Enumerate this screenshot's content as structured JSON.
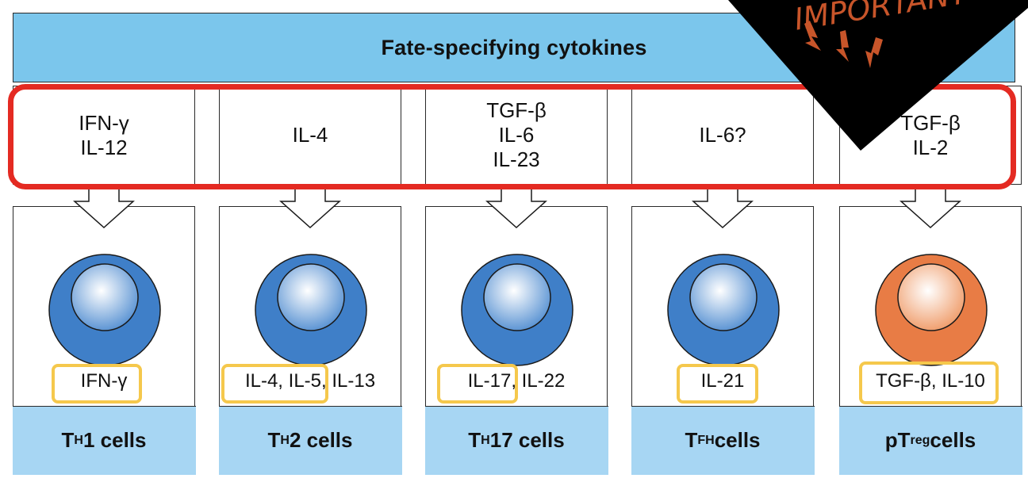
{
  "header": {
    "title": "Fate-specifying cytokines"
  },
  "columns": [
    {
      "inducers": [
        "IFN-γ",
        "IL-12"
      ],
      "secreted": "IFN-γ",
      "label": {
        "pre": "T",
        "sub": "H",
        "post": "1 cells"
      },
      "cell_color": "blue"
    },
    {
      "inducers": [
        "IL-4"
      ],
      "secreted": "IL-4, IL-5, IL-13",
      "label": {
        "pre": "T",
        "sub": "H",
        "post": "2 cells"
      },
      "cell_color": "blue"
    },
    {
      "inducers": [
        "TGF-β",
        "IL-6",
        "IL-23"
      ],
      "secreted": "IL-17, IL-22",
      "label": {
        "pre": "T",
        "sub": "H",
        "post": "17 cells"
      },
      "cell_color": "blue"
    },
    {
      "inducers": [
        "IL-6?"
      ],
      "secreted": "IL-21",
      "label": {
        "pre": "T",
        "sub": "FH",
        "post": " cells"
      },
      "cell_color": "blue"
    },
    {
      "inducers": [
        "TGF-β",
        "IL-2"
      ],
      "secreted": "TGF-β, IL-10",
      "label": {
        "pre": "pT",
        "sub": "reg",
        "post": " cells"
      },
      "cell_color": "orange"
    }
  ],
  "annotation": {
    "text": "IMPORTANT"
  },
  "colors": {
    "header_bg": "#7bc6ec",
    "label_bg": "#a7d6f3",
    "blue_outer": "#3f7fc8",
    "orange_outer": "#e87c45",
    "highlight_red": "#e42a22",
    "highlight_yellow": "#f5c84c",
    "annotation_bg": "#000000",
    "annotation_fg": "#c8552a"
  }
}
